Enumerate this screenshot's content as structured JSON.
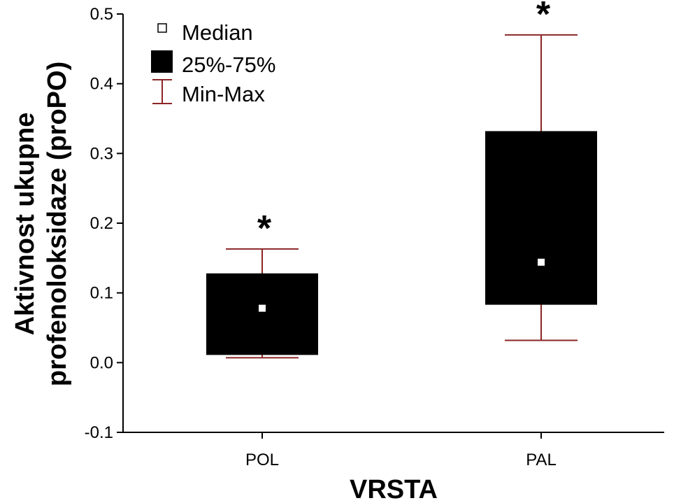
{
  "chart_data": {
    "type": "box",
    "xlabel": "VRSTA",
    "ylabel_lines": [
      "Aktivnost ukupne",
      "profenoloksidaze (proPO)"
    ],
    "ylim": [
      -0.1,
      0.5
    ],
    "yticks": [
      "-0.1",
      "0.0",
      "0.1",
      "0.2",
      "0.3",
      "0.4",
      "0.5"
    ],
    "ytick_values": [
      -0.1,
      0.0,
      0.1,
      0.2,
      0.3,
      0.4,
      0.5
    ],
    "categories": [
      "POL",
      "PAL"
    ],
    "boxes": [
      {
        "category": "POL",
        "min": 0.007,
        "q1": 0.011,
        "median": 0.078,
        "q3": 0.128,
        "max": 0.163,
        "annotation": "*"
      },
      {
        "category": "PAL",
        "min": 0.032,
        "q1": 0.083,
        "median": 0.144,
        "q3": 0.332,
        "max": 0.47,
        "annotation": "*"
      }
    ],
    "legend": {
      "position": "top-left",
      "entries": [
        {
          "symbol": "median-square",
          "label": "Median"
        },
        {
          "symbol": "filled-box",
          "label": "25%-75%"
        },
        {
          "symbol": "whisker",
          "label": "Min-Max"
        }
      ]
    },
    "colors": {
      "box": "#000000",
      "median": "#ffffff",
      "whisker": "#8b2525",
      "axis": "#000000"
    },
    "grid": false
  }
}
